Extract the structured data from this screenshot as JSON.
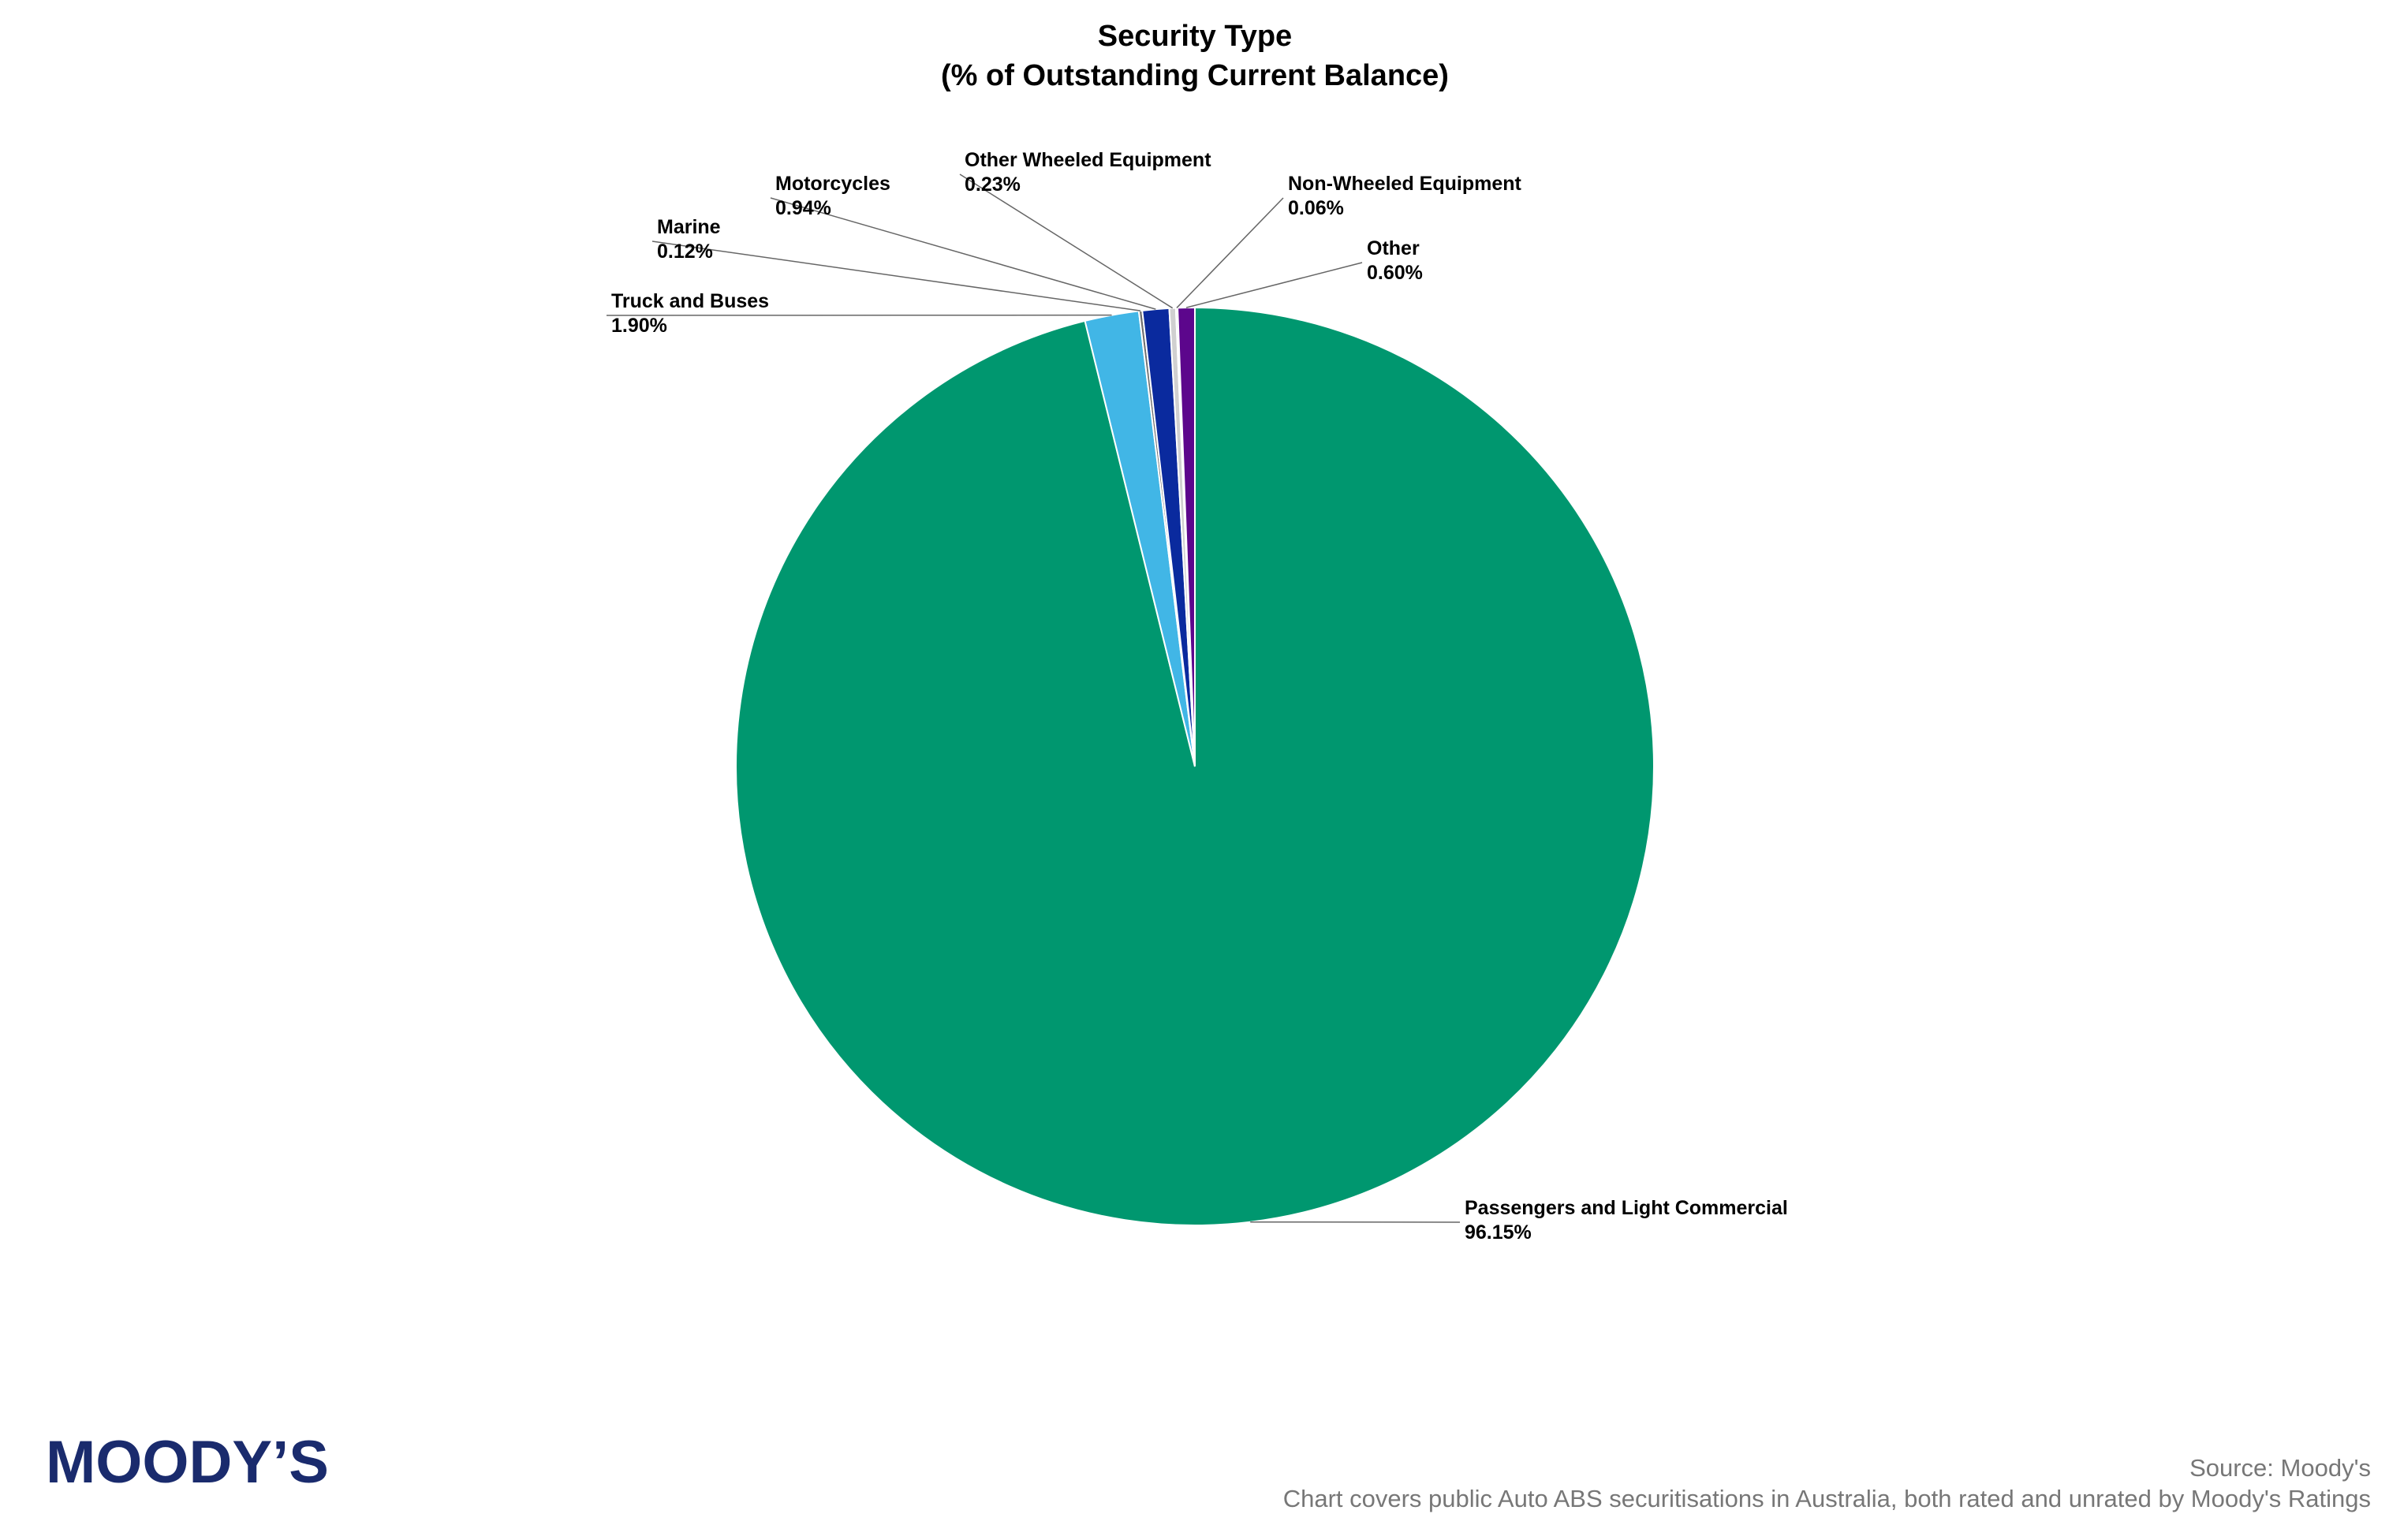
{
  "chart_data": {
    "type": "pie",
    "title": "Security Type",
    "subtitle": "(% of Outstanding Current Balance)",
    "categories": [
      "Passengers and Light Commercial",
      "Truck and Buses",
      "Marine",
      "Motorcycles",
      "Other Wheeled Equipment",
      "Non-Wheeled Equipment",
      "Other"
    ],
    "values": [
      96.15,
      1.9,
      0.12,
      0.94,
      0.23,
      0.06,
      0.6
    ],
    "value_labels": [
      "96.15%",
      "1.90%",
      "0.12%",
      "0.94%",
      "0.23%",
      "0.06%",
      "0.60%"
    ],
    "colors": [
      "#00976f",
      "#41b6e6",
      "#6e6e6e",
      "#0a2a9e",
      "#d0d0d0",
      "#8a8a8a",
      "#5c068c"
    ],
    "source": "Source: Moody's",
    "note": "Chart covers public Auto ABS securitisations in Australia, both rated and unrated by Moody's Ratings"
  },
  "logo": "MOODY’S"
}
